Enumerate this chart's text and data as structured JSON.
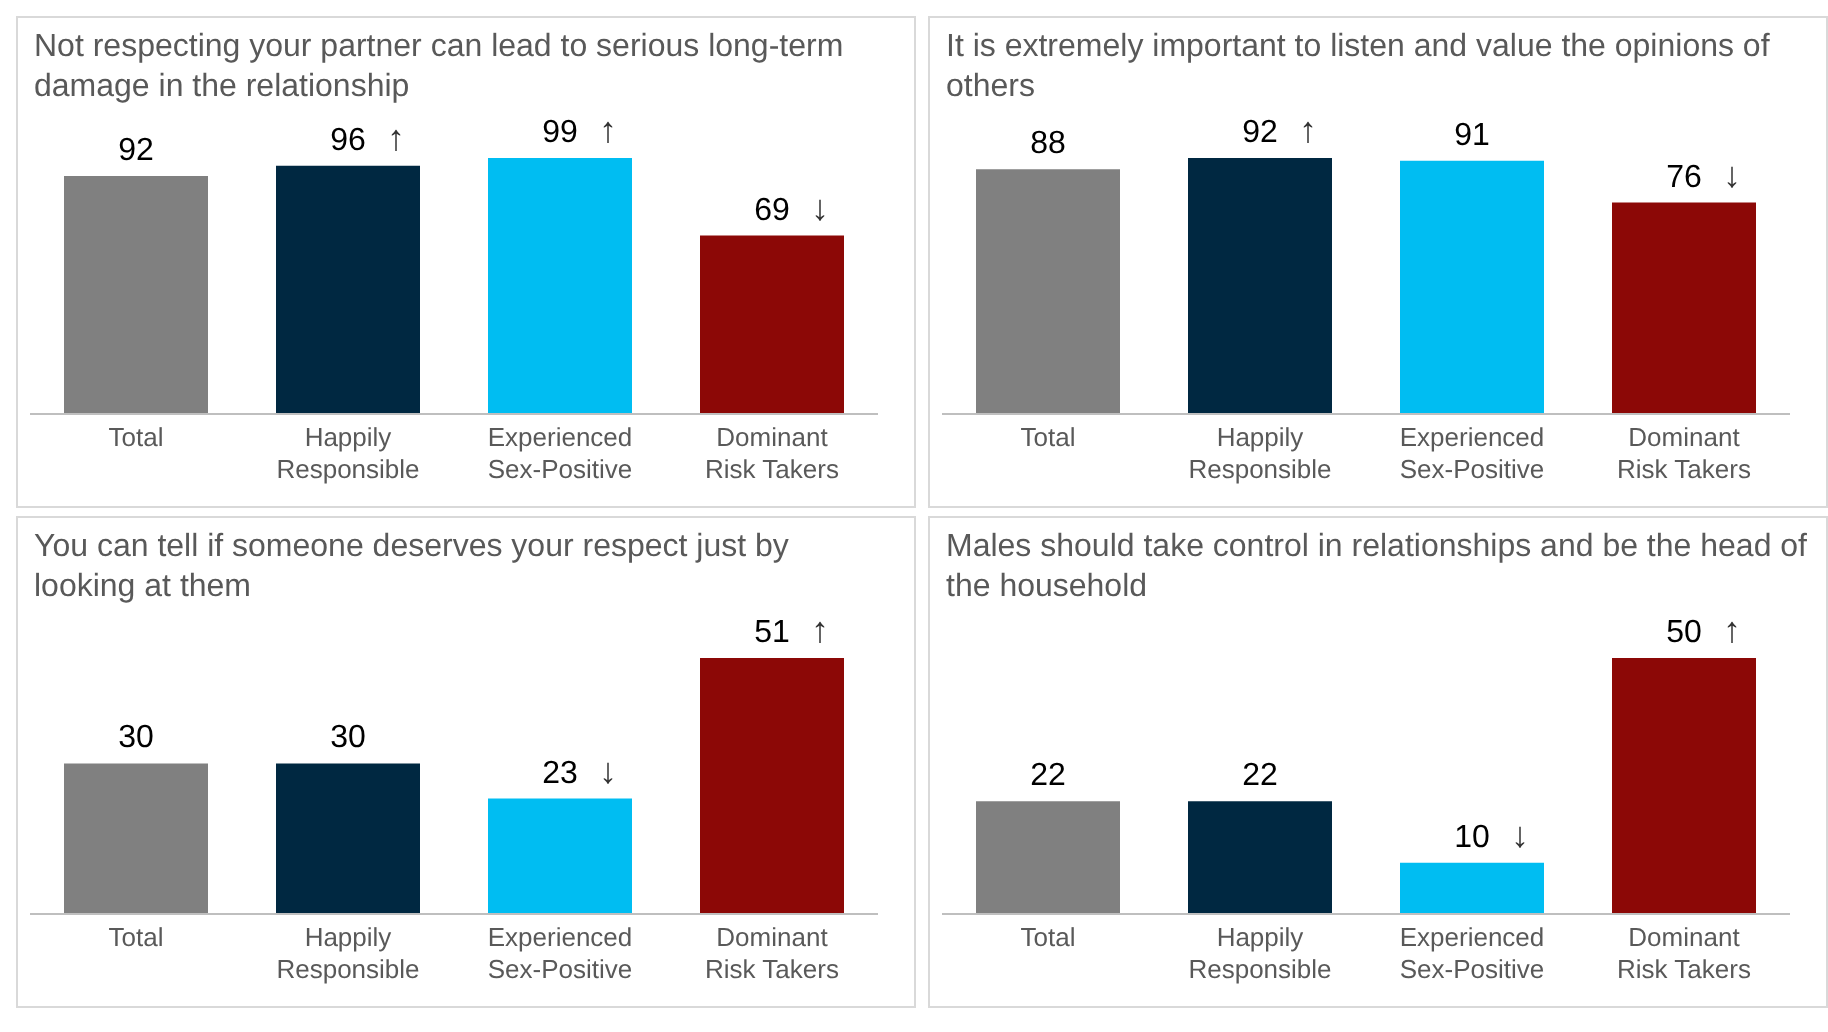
{
  "chart_data": [
    {
      "type": "bar",
      "title": "Not respecting your partner can lead to serious long-term damage in the relationship",
      "categories": [
        "Total",
        "Happily Responsible",
        "Experienced Sex-Positive",
        "Dominant Risk Takers"
      ],
      "values": [
        92,
        96,
        99,
        69
      ],
      "colors": [
        "#808080",
        "#002841",
        "#00bdf2",
        "#8c0806"
      ],
      "data_labels": true,
      "annotations": [
        {
          "text": "↑",
          "x": "Happily Responsible",
          "y": 96
        },
        {
          "text": "↑",
          "x": "Experienced Sex-Positive",
          "y": 99
        },
        {
          "text": "↓",
          "x": "Dominant Risk Takers",
          "y": 69
        }
      ]
    },
    {
      "type": "bar",
      "title": "It is extremely important to listen and value the opinions of others",
      "categories": [
        "Total",
        "Happily Responsible",
        "Experienced Sex-Positive",
        "Dominant Risk Takers"
      ],
      "values": [
        88,
        92,
        91,
        76
      ],
      "colors": [
        "#808080",
        "#002841",
        "#00bdf2",
        "#8c0806"
      ],
      "data_labels": true,
      "annotations": [
        {
          "text": "↑",
          "x": "Happily Responsible",
          "y": 92
        },
        {
          "text": "↓",
          "x": "Dominant Risk Takers",
          "y": 76
        }
      ]
    },
    {
      "type": "bar",
      "title": "You can tell if someone deserves your respect just by looking at them",
      "categories": [
        "Total",
        "Happily Responsible",
        "Experienced Sex-Positive",
        "Dominant Risk Takers"
      ],
      "values": [
        30,
        30,
        23,
        51
      ],
      "colors": [
        "#808080",
        "#002841",
        "#00bdf2",
        "#8c0806"
      ],
      "data_labels": true,
      "annotations": [
        {
          "text": "↓",
          "x": "Experienced Sex-Positive",
          "y": 23
        },
        {
          "text": "↑",
          "x": "Dominant Risk Takers",
          "y": 51
        }
      ]
    },
    {
      "type": "bar",
      "title": "Males should take control in relationships and be the head of the household",
      "categories": [
        "Total",
        "Happily Responsible",
        "Experienced Sex-Positive",
        "Dominant Risk Takers"
      ],
      "values": [
        22,
        22,
        10,
        50
      ],
      "colors": [
        "#808080",
        "#002841",
        "#00bdf2",
        "#8c0806"
      ],
      "data_labels": true,
      "annotations": [
        {
          "text": "↓",
          "x": "Experienced Sex-Positive",
          "y": 10
        },
        {
          "text": "↑",
          "x": "Dominant Risk Takers",
          "y": 50
        }
      ]
    }
  ]
}
